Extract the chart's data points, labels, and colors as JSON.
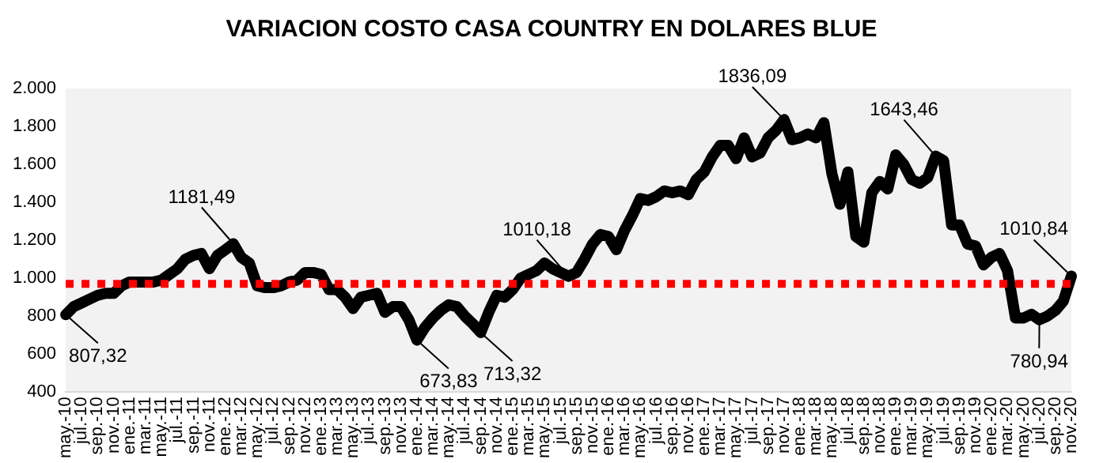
{
  "chart_data": {
    "type": "line",
    "title": "VARIACION COSTO CASA COUNTRY EN DOLARES BLUE",
    "categories": [
      "may.-10",
      null,
      "jul.-10",
      null,
      "sep.-10",
      null,
      "nov.-10",
      null,
      "ene.-11",
      null,
      "mar.-11",
      null,
      "may.-11",
      null,
      "jul.-11",
      null,
      "sep.-11",
      null,
      "nov.-11",
      null,
      "ene.-12",
      null,
      "mar.-12",
      null,
      "may.-12",
      null,
      "jul.-12",
      null,
      "sep.-12",
      null,
      "nov.-12",
      null,
      "ene.-13",
      null,
      "mar.-13",
      null,
      "may.-13",
      null,
      "jul.-13",
      null,
      "sep.-13",
      null,
      "nov.-13",
      null,
      "ene.-14",
      null,
      "mar.-14",
      null,
      "may.-14",
      null,
      "jul.-14",
      null,
      "sep.-14",
      null,
      "nov.-14",
      null,
      "ene.-15",
      null,
      "mar.-15",
      null,
      "may.-15",
      null,
      "jul.-15",
      null,
      "sep.-15",
      null,
      "nov.-15",
      null,
      "ene.-16",
      null,
      "mar.-16",
      null,
      "may.-16",
      null,
      "jul.-16",
      null,
      "sep.-16",
      null,
      "nov.-16",
      null,
      "ene.-17",
      null,
      "mar.-17",
      null,
      "may.-17",
      null,
      "jul.-17",
      null,
      "sep.-17",
      null,
      "nov.-17",
      null,
      "ene.-18",
      null,
      "mar.-18",
      null,
      "may.-18",
      null,
      "jul.-18",
      null,
      "sep.-18",
      null,
      "nov.-18",
      null,
      "ene.-19",
      null,
      "mar.-19",
      null,
      "may.-19",
      null,
      "jul.-19",
      null,
      "sep.-19",
      null,
      "nov.-19",
      null,
      "ene.-20",
      null,
      "mar.-20",
      null,
      "may.-20",
      null,
      "jul.-20",
      null,
      "sep.-20",
      null,
      "nov.-20"
    ],
    "series": [
      {
        "color": "#000000",
        "values": [
          807.32,
          850,
          870,
          890,
          910,
          920,
          920,
          960,
          980,
          980,
          980,
          980,
          990,
          1020,
          1050,
          1100,
          1120,
          1130,
          1050,
          1120,
          1150,
          1181.49,
          1110,
          1080,
          960,
          950,
          950,
          960,
          980,
          990,
          1030,
          1030,
          1020,
          940,
          940,
          900,
          840,
          900,
          910,
          920,
          820,
          850,
          850,
          780,
          673.83,
          740,
          790,
          830,
          860,
          850,
          800,
          760,
          713.32,
          820,
          910,
          900,
          940,
          1000,
          1020,
          1040,
          1080,
          1050,
          1030,
          1010.18,
          1030,
          1100,
          1180,
          1230,
          1220,
          1150,
          1250,
          1330,
          1420,
          1410,
          1430,
          1460,
          1450,
          1460,
          1440,
          1520,
          1560,
          1640,
          1700,
          1700,
          1630,
          1740,
          1640,
          1660,
          1740,
          1780,
          1836.09,
          1730,
          1740,
          1760,
          1740,
          1820,
          1550,
          1390,
          1560,
          1220,
          1190,
          1450,
          1510,
          1470,
          1650,
          1600,
          1520,
          1500,
          1530,
          1643.46,
          1620,
          1280,
          1280,
          1180,
          1170,
          1070,
          1110,
          1130,
          1040,
          790,
          790,
          810,
          780.94,
          800,
          830,
          880,
          1010.84
        ],
        "value_labels": [
          "807,32",
          null,
          null,
          null,
          null,
          null,
          null,
          null,
          null,
          null,
          null,
          null,
          null,
          null,
          null,
          null,
          null,
          null,
          null,
          null,
          null,
          "1181,49",
          null,
          null,
          null,
          null,
          null,
          null,
          null,
          null,
          null,
          null,
          null,
          null,
          null,
          null,
          null,
          null,
          null,
          null,
          null,
          null,
          null,
          null,
          "673,83",
          null,
          null,
          null,
          null,
          null,
          null,
          null,
          "713,32",
          null,
          null,
          null,
          null,
          null,
          null,
          null,
          null,
          null,
          null,
          "1010,18",
          null,
          null,
          null,
          null,
          null,
          null,
          null,
          null,
          null,
          null,
          null,
          null,
          null,
          null,
          null,
          null,
          null,
          null,
          null,
          null,
          null,
          null,
          null,
          null,
          null,
          null,
          "1836,09",
          null,
          null,
          null,
          null,
          null,
          null,
          null,
          null,
          null,
          null,
          null,
          null,
          null,
          null,
          null,
          null,
          null,
          null,
          "1643,46",
          null,
          null,
          null,
          null,
          null,
          null,
          null,
          null,
          null,
          null,
          null,
          null,
          "780,94",
          null,
          null,
          null,
          "1010,84"
        ]
      }
    ],
    "ylim": [
      400,
      2000
    ],
    "yticks": [
      {
        "value": 400,
        "label": "400"
      },
      {
        "value": 600,
        "label": "600"
      },
      {
        "value": 800,
        "label": "800"
      },
      {
        "value": 1000,
        "label": "1.000"
      },
      {
        "value": 1200,
        "label": "1.200"
      },
      {
        "value": 1400,
        "label": "1.400"
      },
      {
        "value": 1600,
        "label": "1.600"
      },
      {
        "value": 1800,
        "label": "1.800"
      },
      {
        "value": 2000,
        "label": "2.000"
      }
    ],
    "ref_lines": [
      {
        "axis": "y",
        "value": 970,
        "color": "#ff0000",
        "line_style": "dotted"
      }
    ],
    "grid": false,
    "legend": false,
    "marker": "none",
    "line_style": "solid"
  }
}
